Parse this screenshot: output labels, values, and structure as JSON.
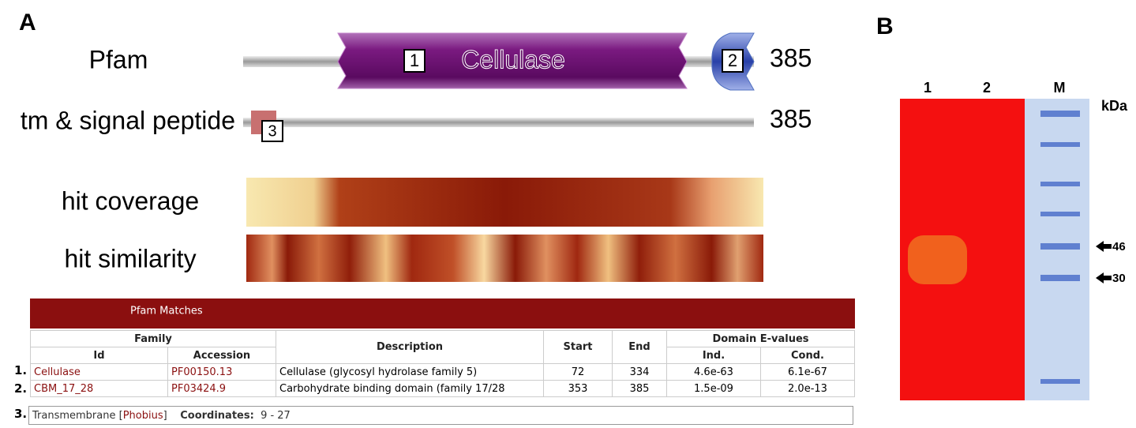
{
  "panel_a": {
    "label": "A",
    "tracks": [
      {
        "label": "Pfam",
        "length": "385",
        "domains": [
          {
            "index": "1",
            "name": "Cellulase"
          },
          {
            "index": "2"
          }
        ]
      },
      {
        "label": "tm & signal peptide",
        "length": "385",
        "domains": [
          {
            "index": "3"
          }
        ]
      }
    ],
    "heatmaps": [
      "hit coverage",
      "hit similarity"
    ],
    "table": {
      "title": "Pfam Matches",
      "groups": [
        "Family",
        "Domain E-values"
      ],
      "headers": [
        "Id",
        "Accession",
        "Description",
        "Start",
        "End",
        "Ind.",
        "Cond."
      ],
      "rows": [
        {
          "number": "1.",
          "cells": [
            "Cellulase",
            "PF00150.13",
            "Cellulase (glycosyl hydrolase family 5)",
            "72",
            "334",
            "4.6e-63",
            "6.1e-67"
          ]
        },
        {
          "number": "2.",
          "cells": [
            "CBM_17_28",
            "PF03424.9",
            "Carbohydrate binding domain (family 17/28",
            "353",
            "385",
            "1.5e-09",
            "2.0e-13"
          ]
        }
      ],
      "extra": {
        "number": "3.",
        "text": "Transmembrane [",
        "link": "Phobius",
        "close": "]",
        "coord_label": "Coordinates:",
        "coords": "9 - 27"
      }
    }
  },
  "panel_b": {
    "label": "B",
    "lanes": [
      "1",
      "2",
      "M"
    ],
    "unit": "kDa",
    "markers": [
      "46",
      "30"
    ]
  }
}
